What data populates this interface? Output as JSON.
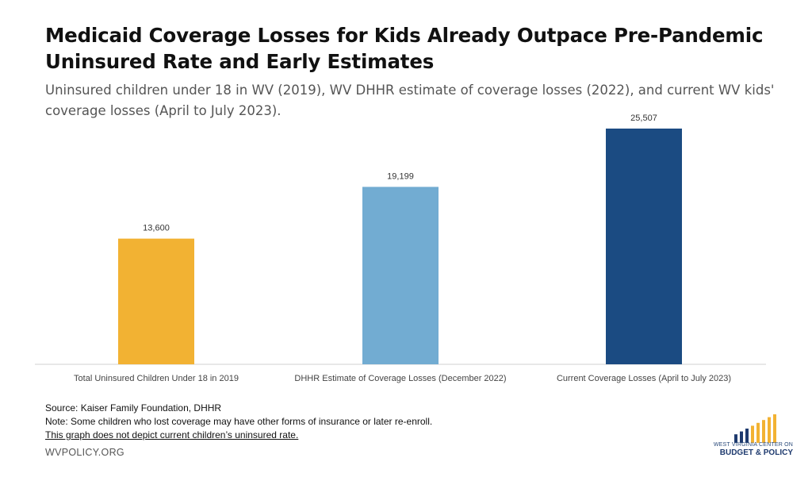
{
  "title": "Medicaid Coverage Losses for Kids Already Outpace Pre-Pandemic Uninsured Rate and Early Estimates",
  "subtitle": "Uninsured children under 18 in WV (2019), WV DHHR estimate of coverage losses (2022), and current WV kids' coverage losses (April to July 2023).",
  "chart_data": {
    "type": "bar",
    "categories": [
      "Total Uninsured Children Under 18 in 2019",
      "DHHR Estimate of Coverage Losses (December 2022)",
      "Current Coverage Losses (April to July 2023)"
    ],
    "values": [
      13600,
      19199,
      25507
    ],
    "value_labels": [
      "13,600",
      "19,199",
      "25,507"
    ],
    "colors": [
      "#f2b233",
      "#72acd2",
      "#1b4b82"
    ],
    "ylim": [
      0,
      25507
    ],
    "grid": false,
    "legend": "none"
  },
  "footer": {
    "source": "Source: Kaiser Family Foundation, DHHR",
    "note": "Note: Some children who lost coverage may have other forms of insurance or later re-enroll.",
    "disclaimer": "This graph does not depict current children’s uninsured rate."
  },
  "site": "WVPOLICY.ORG",
  "logo": {
    "line1": "WEST VIRGINIA CENTER ON",
    "line2": "BUDGET & POLICY",
    "bar_colors": [
      "#1e3a6e",
      "#1e3a6e",
      "#1e3a6e",
      "#f2b233",
      "#f2b233",
      "#f2b233",
      "#f2b233",
      "#f2b233"
    ]
  }
}
